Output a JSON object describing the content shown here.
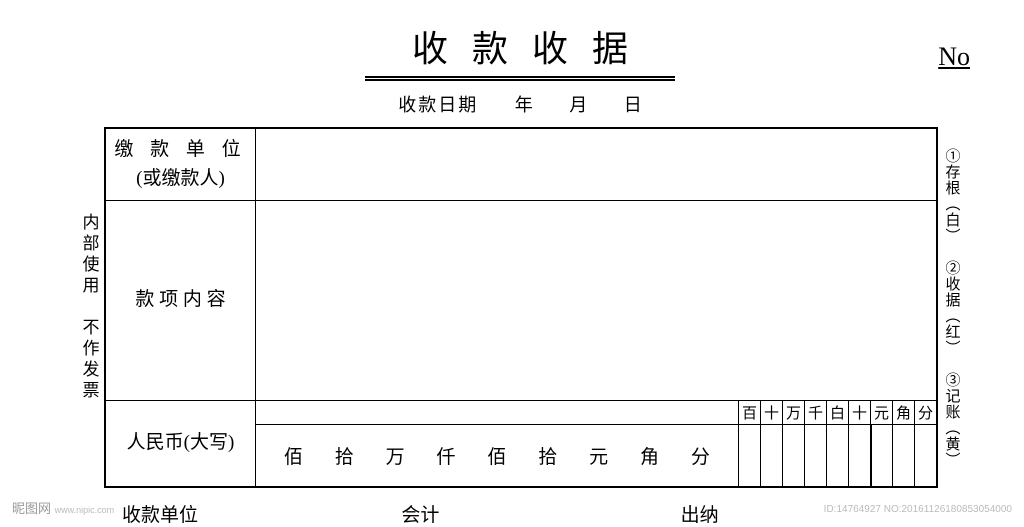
{
  "title": "收款收据",
  "no_label": "No",
  "date": {
    "label": "收款日期",
    "year": "年",
    "month": "月",
    "day": "日"
  },
  "left_note": "内部使用　不作发票",
  "right_note": "①存根︵白︶　②收据︵红︶　③记账︵黄︶",
  "rows": {
    "payer": {
      "line1": "缴 款 单 位",
      "line2": "(或缴款人)"
    },
    "item": {
      "label": "款 项 内 容"
    },
    "amount": {
      "label": "人民币(大写)",
      "cn_units": [
        "佰",
        "拾",
        "万",
        "仟",
        "佰",
        "拾",
        "元",
        "角",
        "分"
      ],
      "digit_headers": [
        "百",
        "十",
        "万",
        "千",
        "白",
        "十",
        "元",
        "角",
        "分"
      ]
    }
  },
  "footer": {
    "unit": "收款单位",
    "accountant": "会计",
    "cashier": "出纳"
  },
  "watermark": {
    "left_main": "昵图网",
    "left_sub": "www.nipic.com",
    "right": "ID:14764927 NO:20161126180853054000"
  },
  "colors": {
    "text": "#000000",
    "bg": "#ffffff",
    "watermark": "#999999"
  }
}
